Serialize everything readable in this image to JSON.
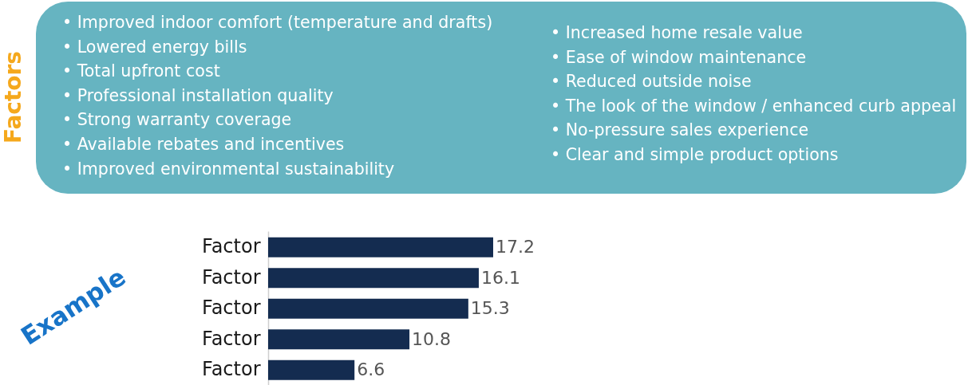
{
  "chart_data": [
    {
      "type": "other",
      "title": "Factors",
      "annotations": [
        "• Improved indoor comfort (temperature and drafts)",
        "• Lowered energy bills",
        "• Total upfront cost",
        "• Professional installation quality",
        "• Strong warranty coverage",
        "• Available rebates and incentives",
        "• Improved environmental sustainability",
        "• Increased home resale value",
        "• Ease of window maintenance",
        "• Reduced outside noise",
        "• The look of the window / enhanced curb appeal",
        "• No-pressure sales experience",
        "• Clear and simple product options"
      ]
    },
    {
      "type": "bar",
      "orientation": "horizontal",
      "title": "Example",
      "categories": [
        "Factor",
        "Factor",
        "Factor",
        "Factor",
        "Factor"
      ],
      "values": [
        17.2,
        16.1,
        15.3,
        10.8,
        6.6
      ],
      "color": "#142c50",
      "data_labels": true,
      "tick_labels": "y"
    }
  ]
}
